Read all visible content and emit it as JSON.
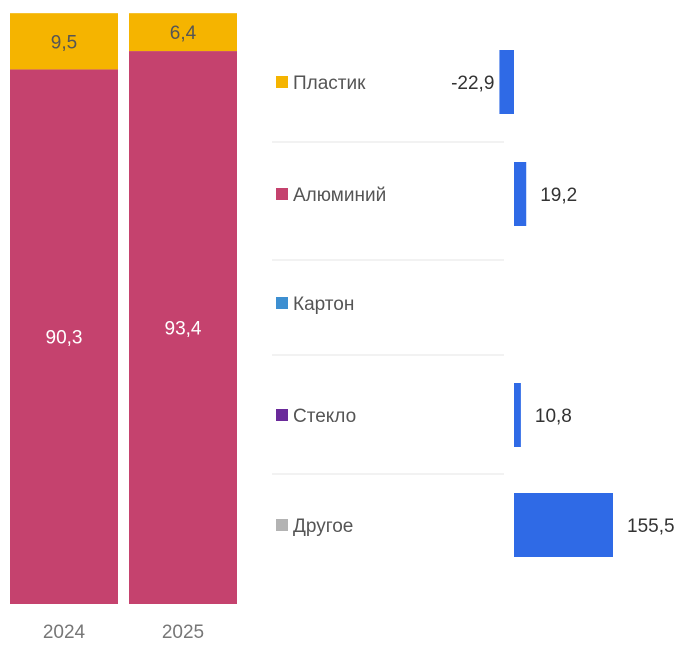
{
  "chart_data": [
    {
      "type": "bar",
      "stacked": true,
      "categories": [
        "2024",
        "2025"
      ],
      "ylim": [
        0,
        100
      ],
      "series": [
        {
          "name": "Алюминий",
          "values": [
            90.3,
            93.4
          ],
          "labels": [
            "90,3",
            "93,4"
          ],
          "color": "#c5426e"
        },
        {
          "name": "Пластик",
          "values": [
            9.5,
            6.4
          ],
          "labels": [
            "9,5",
            "6,4"
          ],
          "color": "#f5b400"
        }
      ],
      "label_color": "#ffffff",
      "top_label_color": "#555555"
    },
    {
      "type": "bar",
      "orientation": "horizontal",
      "categories": [
        "Пластик",
        "Алюминий",
        "Картон",
        "Стекло",
        "Другое"
      ],
      "category_colors": [
        "#f5b400",
        "#c5426e",
        "#3d8fd1",
        "#6a2a9a",
        "#b3b3b3"
      ],
      "values": [
        -22.9,
        19.2,
        null,
        10.8,
        155.5
      ],
      "value_labels": [
        "-22,9",
        "19,2",
        "",
        "10,8",
        "155,5"
      ],
      "xlim": [
        -30,
        200
      ],
      "color": "#2f6ae6"
    }
  ]
}
